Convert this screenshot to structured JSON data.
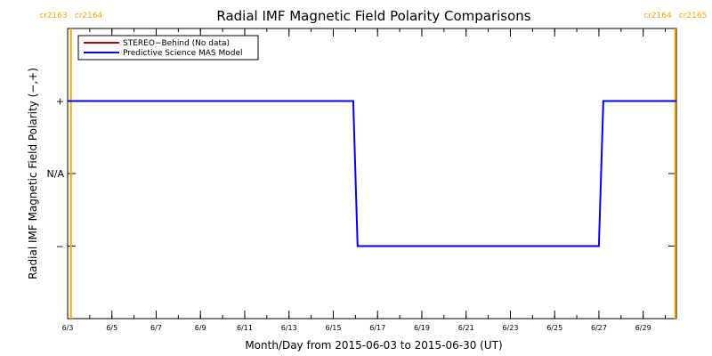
{
  "chart_data": {
    "type": "line",
    "title": "Radial IMF Magnetic Field Polarity Comparisons",
    "xlabel": "Month/Day from 2015-06-03 to 2015-06-30 (UT)",
    "ylabel": "Radial IMF Magnetic Field Polarity (−,+)",
    "x_ticks": [
      "6/3",
      "6/5",
      "6/7",
      "6/9",
      "6/11",
      "6/13",
      "6/15",
      "6/17",
      "6/19",
      "6/21",
      "6/23",
      "6/25",
      "6/27",
      "6/29"
    ],
    "x_tick_days": [
      3,
      5,
      7,
      9,
      11,
      13,
      15,
      17,
      19,
      21,
      23,
      25,
      27,
      29
    ],
    "xlim": [
      3,
      30.5
    ],
    "y_ticks": [
      {
        "value": 1,
        "label": "+"
      },
      {
        "value": 0,
        "label": "N/A"
      },
      {
        "value": -1,
        "label": "−"
      }
    ],
    "ylim": [
      -2,
      2
    ],
    "legend_position": "top-left",
    "series": [
      {
        "name": "STEREO−Behind (No data)",
        "color": "#c00000",
        "points": []
      },
      {
        "name": "Predictive Science MAS Model",
        "color": "#0000ff",
        "points": [
          [
            3.0,
            1
          ],
          [
            15.9,
            1
          ],
          [
            16.1,
            -1
          ],
          [
            27.0,
            -1
          ],
          [
            27.2,
            1
          ],
          [
            30.5,
            1
          ]
        ]
      }
    ],
    "carrington_markers": [
      {
        "day": 3.15,
        "label_left": "cr2163",
        "label_right": "cr2164",
        "side": "left"
      },
      {
        "day": 30.45,
        "label_left": "cr2164",
        "label_right": "cr2165",
        "side": "right"
      }
    ],
    "marker_color": "#ffa500"
  }
}
